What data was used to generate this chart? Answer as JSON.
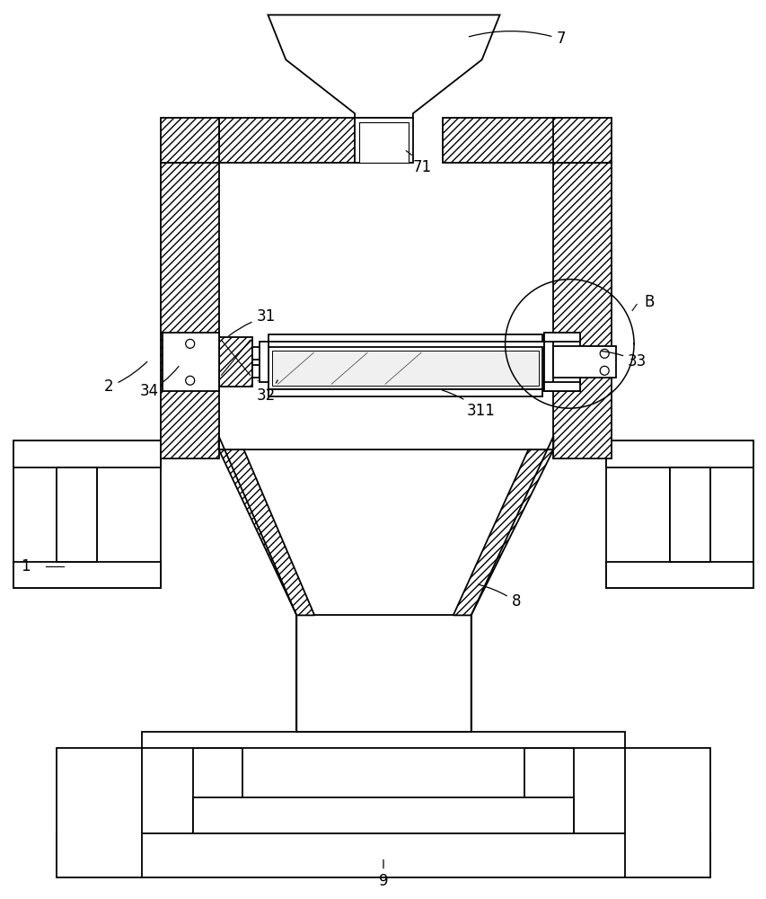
{
  "bg_color": "#ffffff",
  "line_color": "#000000",
  "hatch_color": "#000000",
  "fig_width": 8.54,
  "fig_height": 10.0,
  "lw": 1.3,
  "hatch": "////"
}
